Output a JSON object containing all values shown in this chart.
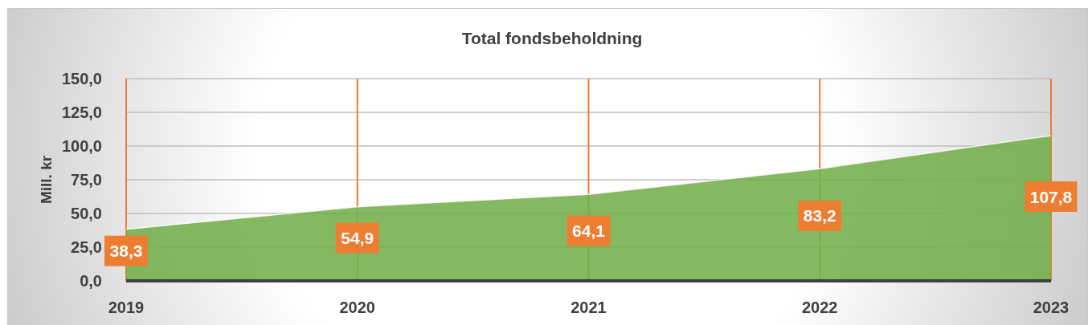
{
  "chart_data": {
    "type": "area",
    "title": "Total fondsbeholdning",
    "ylabel": "Mill. kr",
    "categories": [
      "2019",
      "2020",
      "2021",
      "2022",
      "2023"
    ],
    "values": [
      38.3,
      54.9,
      64.1,
      83.2,
      107.8
    ],
    "color": "#70ad47",
    "value_labels": [
      "38,3",
      "54,9",
      "64,1",
      "83,2",
      "107,8"
    ],
    "ylim": [
      0,
      150
    ],
    "yticks": [
      {
        "value": 0,
        "label": "0,0"
      },
      {
        "value": 25,
        "label": "25,0"
      },
      {
        "value": 50,
        "label": "50,0"
      },
      {
        "value": 75,
        "label": "75,0"
      },
      {
        "value": 100,
        "label": "100,0"
      },
      {
        "value": 125,
        "label": "125,0"
      },
      {
        "value": 150,
        "label": "150,0"
      }
    ],
    "grid": true
  }
}
